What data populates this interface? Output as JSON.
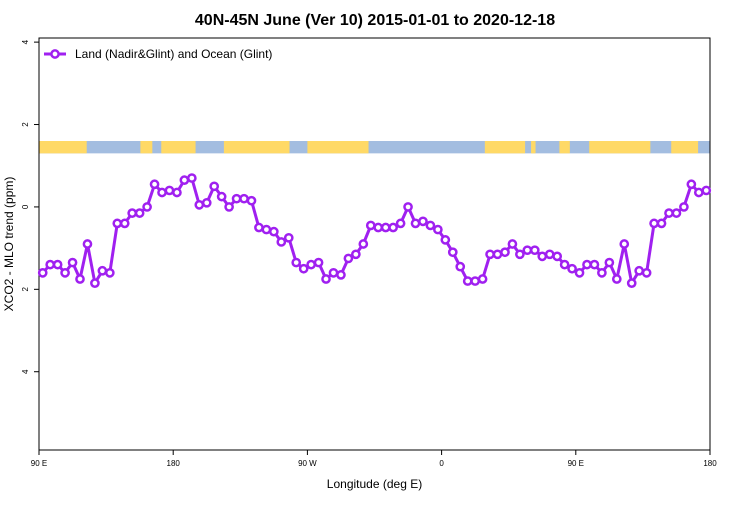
{
  "chart_data": {
    "type": "line",
    "title": "40N-45N June (Ver 10)   2015-01-01 to 2020-12-18",
    "xlabel": "Longitude (deg E)",
    "ylabel": "XCO2 - MLO trend (ppm)",
    "xlim": [
      90,
      540
    ],
    "ylim": [
      -5.9,
      4.1
    ],
    "x_ticks": [
      {
        "value": 90,
        "label": "90 E"
      },
      {
        "value": 180,
        "label": "180"
      },
      {
        "value": 270,
        "label": "90 W"
      },
      {
        "value": 360,
        "label": "0"
      },
      {
        "value": 450,
        "label": "90 E"
      },
      {
        "value": 540,
        "label": "180"
      }
    ],
    "y_ticks": [
      {
        "value": 4,
        "label": "4"
      },
      {
        "value": 2,
        "label": "2"
      },
      {
        "value": 0,
        "label": "0"
      },
      {
        "value": -2,
        "label": "2"
      },
      {
        "value": -4,
        "label": "4"
      }
    ],
    "grid": false,
    "legend_position": "top-left",
    "series": [
      {
        "name": "Land (Nadir&Glint) and Ocean (Glint)",
        "color": "#a020f0",
        "x": [
          92.5,
          97.5,
          102.5,
          107.5,
          112.5,
          117.5,
          122.5,
          127.5,
          132.5,
          137.5,
          142.5,
          147.5,
          152.5,
          157.5,
          162.5,
          167.5,
          172.5,
          177.5,
          182.5,
          187.5,
          192.5,
          197.5,
          202.5,
          207.5,
          212.5,
          217.5,
          222.5,
          227.5,
          232.5,
          237.5,
          242.5,
          247.5,
          252.5,
          257.5,
          262.5,
          267.5,
          272.5,
          277.5,
          282.5,
          287.5,
          292.5,
          297.5,
          302.5,
          307.5,
          312.5,
          317.5,
          322.5,
          327.5,
          332.5,
          337.5,
          342.5,
          347.5,
          352.5,
          357.5,
          362.5,
          367.5,
          372.5,
          377.5,
          382.5,
          387.5,
          392.5,
          397.5,
          402.5,
          407.5,
          412.5,
          417.5,
          422.5,
          427.5,
          432.5,
          437.5,
          442.5,
          447.5,
          452.5,
          457.5,
          462.5,
          467.5,
          472.5,
          477.5,
          482.5,
          487.5,
          492.5,
          497.5,
          502.5,
          507.5,
          512.5,
          517.5,
          522.5,
          527.5,
          532.5,
          537.5
        ],
        "y": [
          -1.6,
          -1.4,
          -1.4,
          -1.6,
          -1.35,
          -1.75,
          -0.9,
          -1.85,
          -1.55,
          -1.6,
          -0.4,
          -0.4,
          -0.15,
          -0.15,
          0,
          0.55,
          0.35,
          0.4,
          0.35,
          0.65,
          0.7,
          0.05,
          0.1,
          0.5,
          0.25,
          0,
          0.2,
          0.2,
          0.15,
          -0.5,
          -0.55,
          -0.6,
          -0.85,
          -0.75,
          -1.35,
          -1.5,
          -1.4,
          -1.35,
          -1.75,
          -1.6,
          -1.65,
          -1.25,
          -1.15,
          -0.9,
          -0.45,
          -0.5,
          -0.5,
          -0.5,
          -0.4,
          0,
          -0.4,
          -0.35,
          -0.45,
          -0.55,
          -0.8,
          -1.1,
          -1.45,
          -1.8,
          -1.8,
          -1.75,
          -1.15,
          -1.15,
          -1.1,
          -0.9,
          -1.15,
          -1.05,
          -1.05,
          -1.2,
          -1.15,
          -1.2,
          -1.4,
          -1.5,
          -1.6,
          -1.4,
          -1.4,
          -1.6,
          -1.35,
          -1.75,
          -0.9,
          -1.85,
          -1.55,
          -1.6,
          -0.4,
          -0.4,
          -0.15,
          -0.15,
          0,
          0.55,
          0.35,
          0.4
        ]
      }
    ],
    "landmask_band": {
      "y_range": [
        1.3,
        1.6
      ],
      "land_color": "#ffd966",
      "ocean_color": "#a3bde0",
      "land_segments": [
        [
          90,
          122
        ],
        [
          158,
          166
        ],
        [
          172,
          195
        ],
        [
          214,
          258
        ],
        [
          270,
          311
        ],
        [
          389,
          416
        ],
        [
          420,
          423
        ],
        [
          439,
          446
        ],
        [
          459,
          500
        ],
        [
          514,
          532
        ]
      ]
    }
  }
}
